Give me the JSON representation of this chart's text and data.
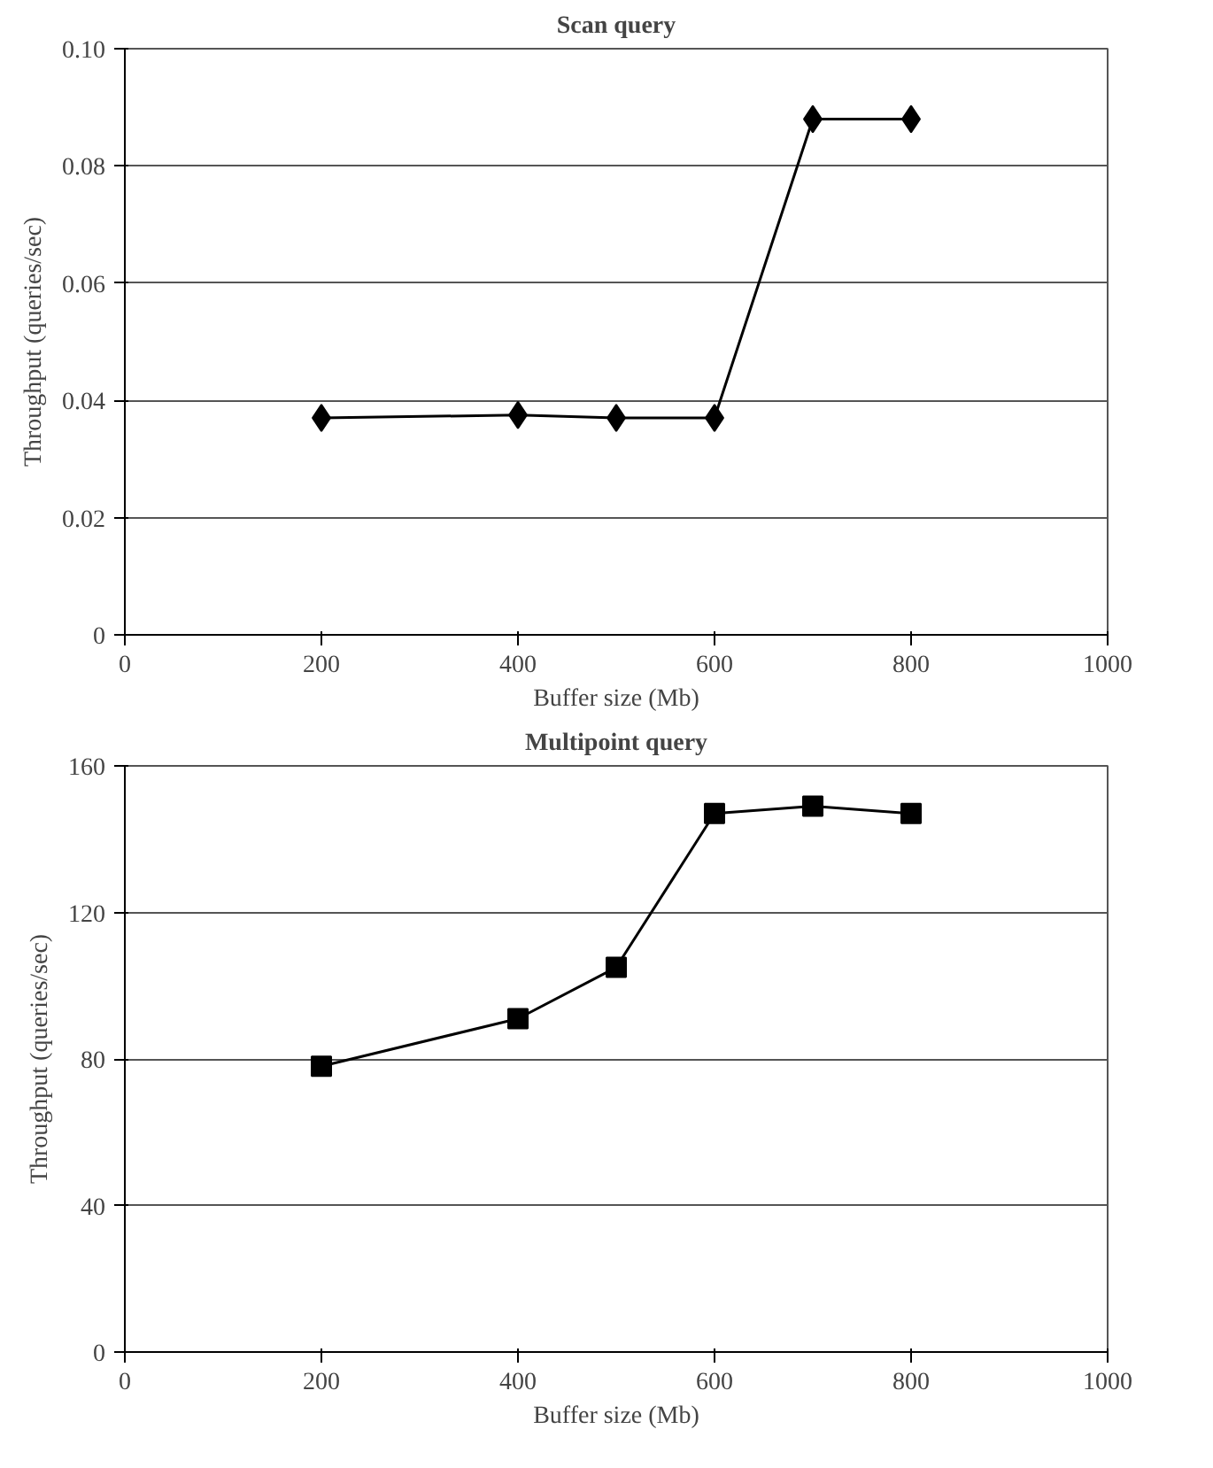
{
  "chart_data": [
    {
      "type": "line",
      "title": "Scan query",
      "xlabel": "Buffer size (Mb)",
      "ylabel": "Throughput (queries/sec)",
      "x": [
        200,
        400,
        500,
        600,
        700,
        800
      ],
      "series": [
        {
          "color": "#000000",
          "values": [
            0.037,
            0.0375,
            0.037,
            0.037,
            0.088,
            0.088
          ]
        }
      ],
      "xlim": [
        0,
        1000
      ],
      "xticks": [
        0,
        200,
        400,
        600,
        800,
        1000
      ],
      "ylim": [
        0,
        0.1
      ],
      "yticks": [
        {
          "value": 0,
          "label": "0"
        },
        {
          "value": 0.02,
          "label": "0.02"
        },
        {
          "value": 0.04,
          "label": "0.04"
        },
        {
          "value": 0.06,
          "label": "0.06"
        },
        {
          "value": 0.08,
          "label": "0.08"
        },
        {
          "value": 0.1,
          "label": "0.10"
        }
      ],
      "grid": "y",
      "marker": "diamond",
      "line_style": "solid"
    },
    {
      "type": "line",
      "title": "Multipoint query",
      "xlabel": "Buffer size (Mb)",
      "ylabel": "Throughput (queries/sec)",
      "x": [
        200,
        400,
        500,
        600,
        700,
        800
      ],
      "series": [
        {
          "color": "#000000",
          "values": [
            78,
            91,
            105,
            147,
            149,
            147
          ]
        }
      ],
      "xlim": [
        0,
        1000
      ],
      "xticks": [
        0,
        200,
        400,
        600,
        800,
        1000
      ],
      "ylim": [
        0,
        160
      ],
      "yticks": [
        0,
        40,
        80,
        120,
        160
      ],
      "grid": "y",
      "marker": "square",
      "line_style": "solid"
    }
  ]
}
